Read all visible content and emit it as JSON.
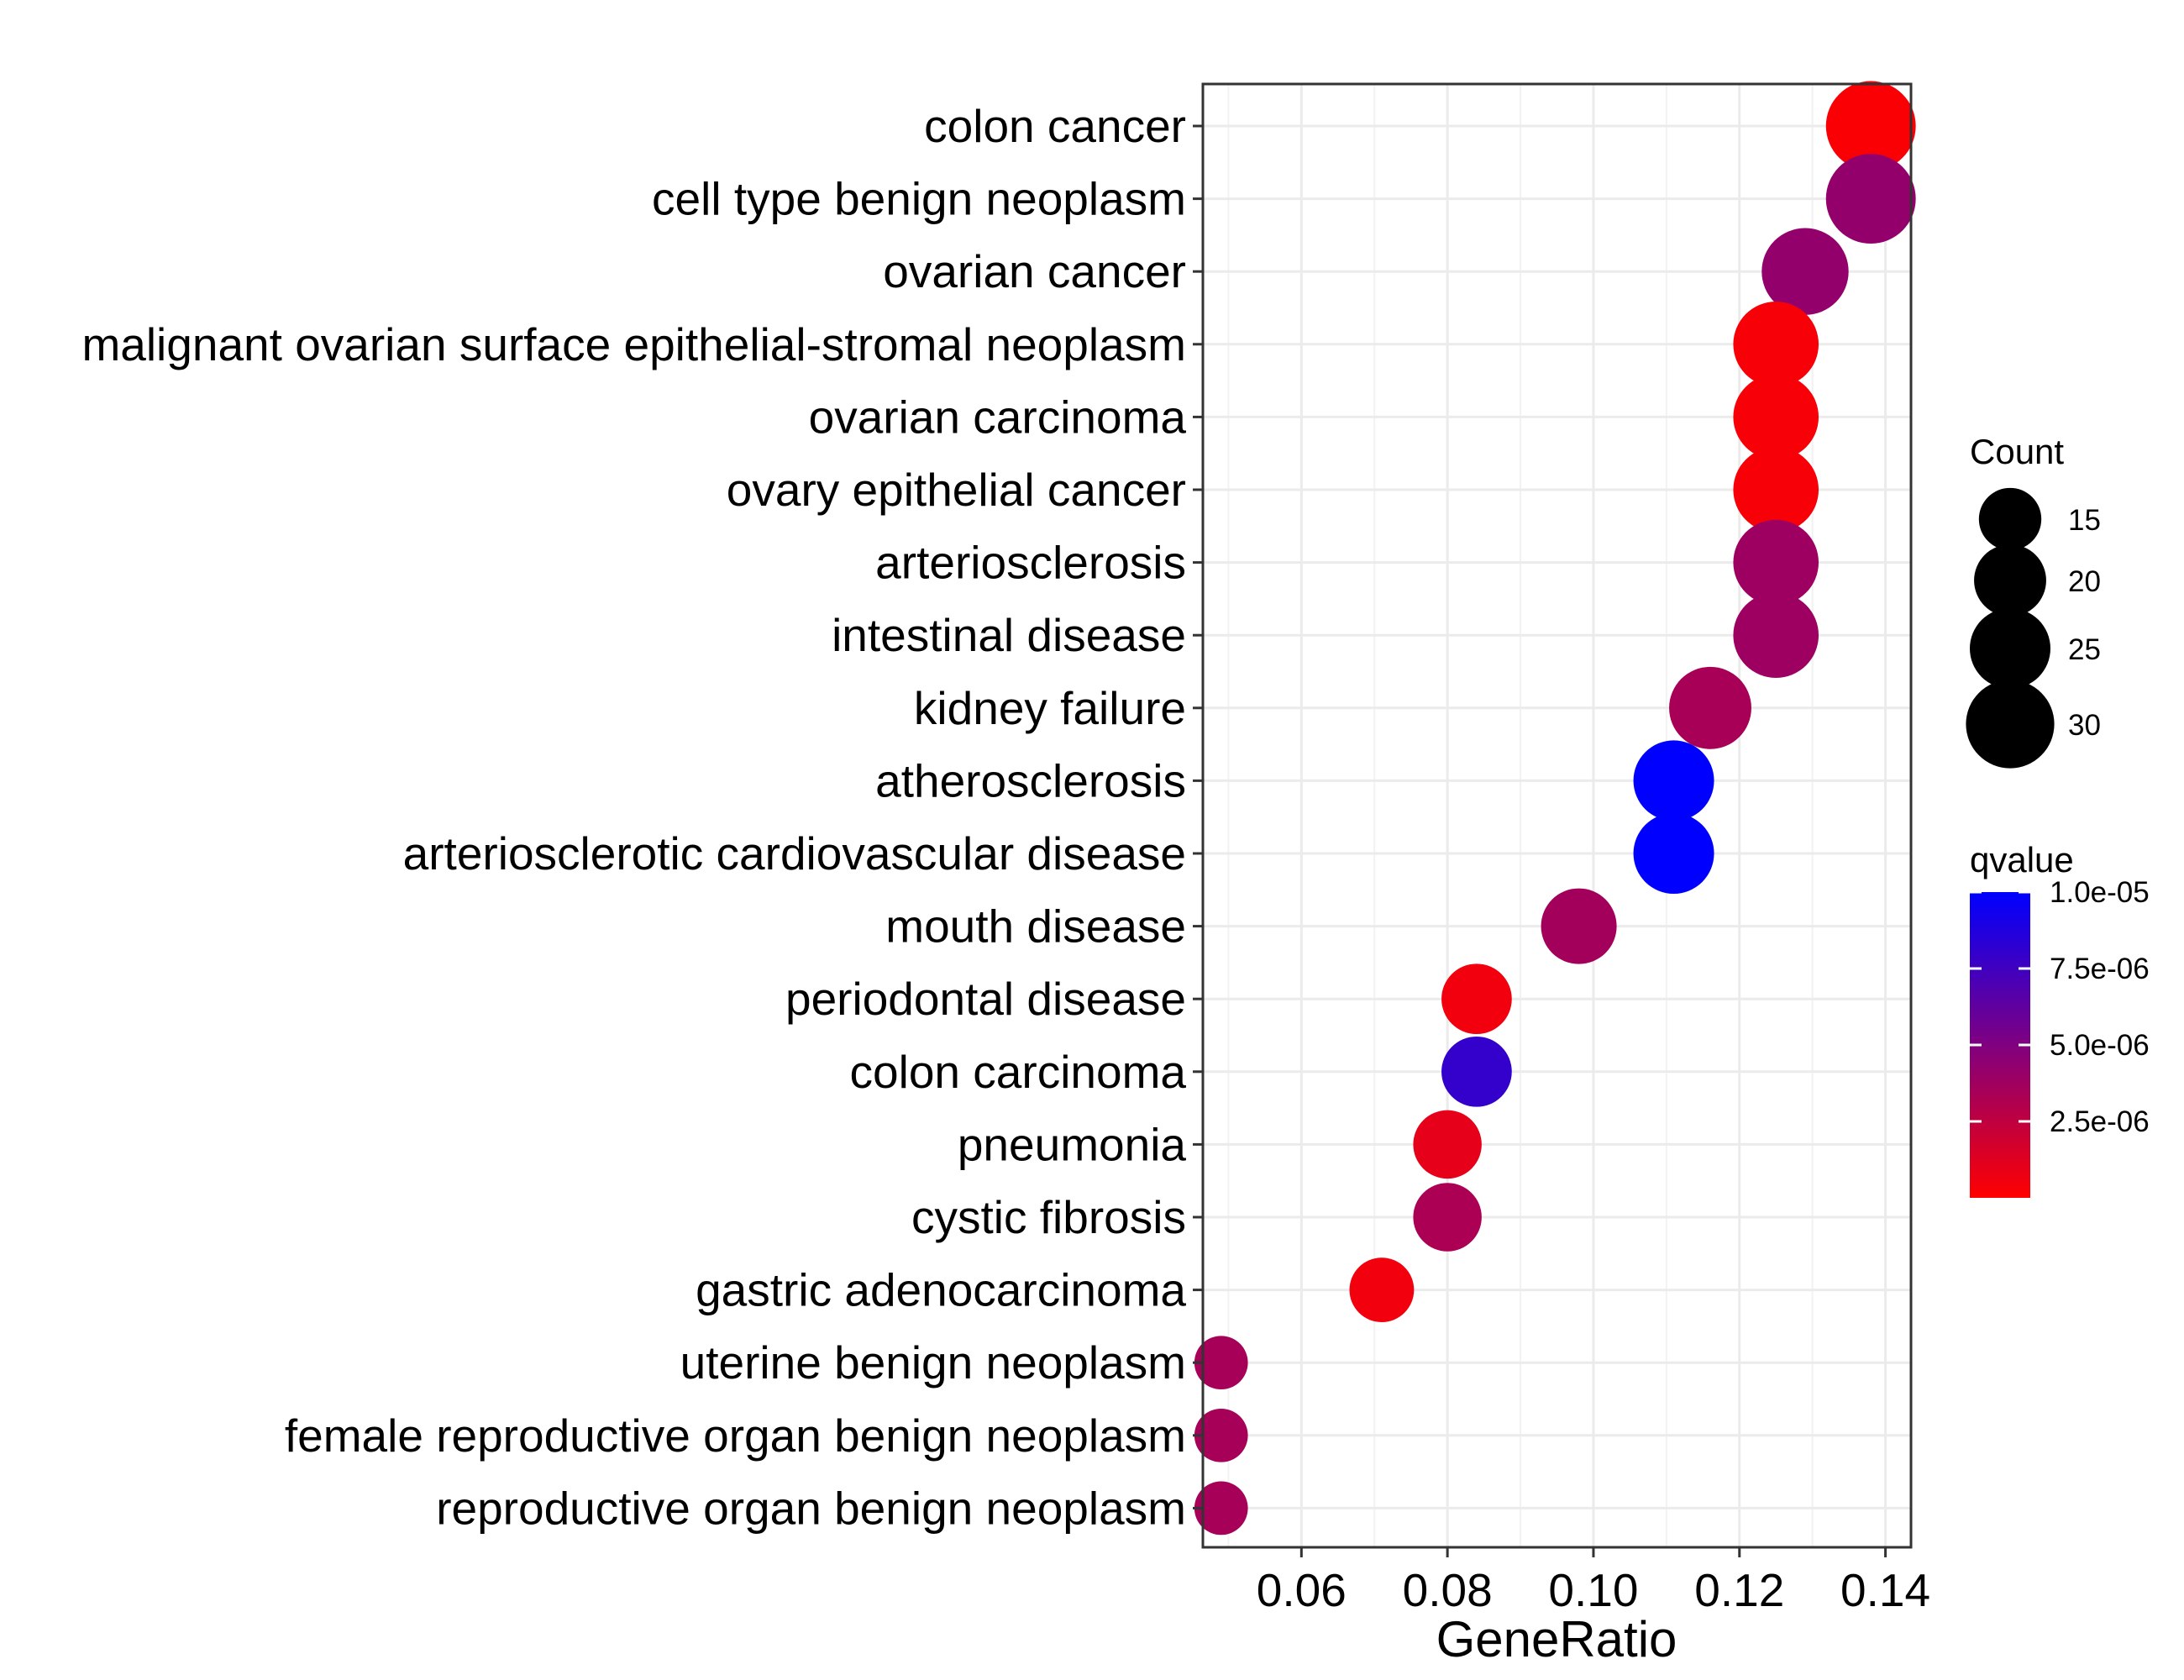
{
  "chart_data": {
    "type": "scatter",
    "title": "",
    "xlabel": "GeneRatio",
    "ylabel": "",
    "xlim": [
      0.0465,
      0.1435
    ],
    "xticks": [
      0.06,
      0.08,
      0.1,
      0.12,
      0.14
    ],
    "xtick_labels": [
      "0.06",
      "0.08",
      "0.10",
      "0.12",
      "0.14"
    ],
    "grid": true,
    "categories": [
      "colon cancer",
      "cell type benign neoplasm",
      "ovarian cancer",
      "malignant ovarian surface epithelial-stromal neoplasm",
      "ovarian carcinoma",
      "ovary epithelial cancer",
      "arteriosclerosis",
      "intestinal disease",
      "kidney failure",
      "atherosclerosis",
      "arteriosclerotic cardiovascular disease",
      "mouth disease",
      "periodontal disease",
      "colon carcinoma",
      "pneumonia",
      "cystic fibrosis",
      "gastric adenocarcinoma",
      "uterine benign neoplasm",
      "female reproductive organ benign neoplasm",
      "reproductive organ benign neoplasm"
    ],
    "points": [
      {
        "term": "colon cancer",
        "gene_ratio": 0.138,
        "count": 31,
        "qvalue": 2e-07
      },
      {
        "term": "cell type benign neoplasm",
        "gene_ratio": 0.138,
        "count": 31,
        "qvalue": 4.2e-06
      },
      {
        "term": "ovarian cancer",
        "gene_ratio": 0.129,
        "count": 29,
        "qvalue": 4.2e-06
      },
      {
        "term": "malignant ovarian surface epithelial-stromal neoplasm",
        "gene_ratio": 0.125,
        "count": 28,
        "qvalue": 3e-07
      },
      {
        "term": "ovarian carcinoma",
        "gene_ratio": 0.125,
        "count": 28,
        "qvalue": 3e-07
      },
      {
        "term": "ovary epithelial cancer",
        "gene_ratio": 0.125,
        "count": 28,
        "qvalue": 3e-07
      },
      {
        "term": "arteriosclerosis",
        "gene_ratio": 0.125,
        "count": 28,
        "qvalue": 3.8e-06
      },
      {
        "term": "intestinal disease",
        "gene_ratio": 0.125,
        "count": 28,
        "qvalue": 3.8e-06
      },
      {
        "term": "kidney failure",
        "gene_ratio": 0.116,
        "count": 26,
        "qvalue": 3.4e-06
      },
      {
        "term": "atherosclerosis",
        "gene_ratio": 0.111,
        "count": 25,
        "qvalue": 1e-05
      },
      {
        "term": "arteriosclerotic cardiovascular disease",
        "gene_ratio": 0.111,
        "count": 25,
        "qvalue": 1e-05
      },
      {
        "term": "mouth disease",
        "gene_ratio": 0.098,
        "count": 22,
        "qvalue": 3.6e-06
      },
      {
        "term": "periodontal disease",
        "gene_ratio": 0.084,
        "count": 19,
        "qvalue": 5e-07
      },
      {
        "term": "colon carcinoma",
        "gene_ratio": 0.084,
        "count": 19,
        "qvalue": 8e-06
      },
      {
        "term": "pneumonia",
        "gene_ratio": 0.08,
        "count": 18,
        "qvalue": 1e-06
      },
      {
        "term": "cystic fibrosis",
        "gene_ratio": 0.08,
        "count": 18,
        "qvalue": 3.3e-06
      },
      {
        "term": "gastric adenocarcinoma",
        "gene_ratio": 0.071,
        "count": 16,
        "qvalue": 5e-07
      },
      {
        "term": "uterine benign neoplasm",
        "gene_ratio": 0.049,
        "count": 11,
        "qvalue": 3.5e-06
      },
      {
        "term": "female reproductive organ benign neoplasm",
        "gene_ratio": 0.049,
        "count": 11,
        "qvalue": 3.5e-06
      },
      {
        "term": "reproductive organ benign neoplasm",
        "gene_ratio": 0.049,
        "count": 11,
        "qvalue": 3.5e-06
      }
    ],
    "legend_count": {
      "title": "Count",
      "entries": [
        {
          "label": "15",
          "value": 15
        },
        {
          "label": "20",
          "value": 20
        },
        {
          "label": "25",
          "value": 25
        },
        {
          "label": "30",
          "value": 30
        }
      ]
    },
    "legend_qvalue": {
      "title": "qvalue",
      "range": [
        0,
        1e-05
      ],
      "low_color": "#ff0000",
      "high_color": "#0000ff",
      "entries": [
        {
          "label": "1.0e-05",
          "value": 1e-05
        },
        {
          "label": "7.5e-06",
          "value": 7.5e-06
        },
        {
          "label": "5.0e-06",
          "value": 5e-06
        },
        {
          "label": "2.5e-06",
          "value": 2.5e-06
        }
      ]
    }
  }
}
